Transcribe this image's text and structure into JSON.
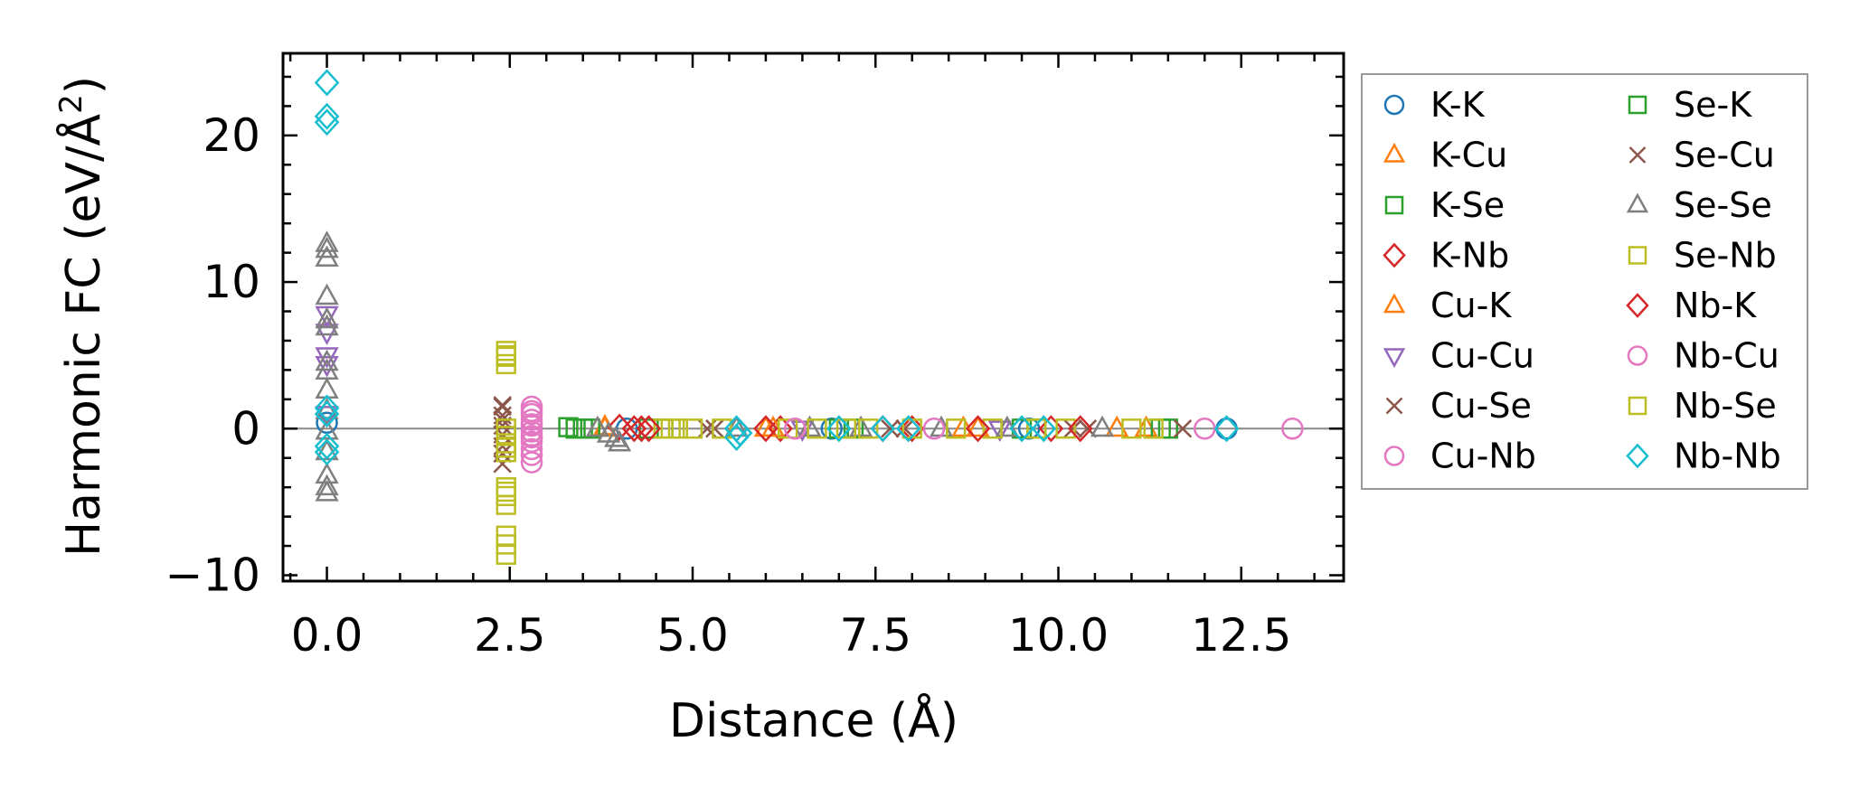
{
  "chart_data": {
    "type": "scatter",
    "title": "",
    "xlabel": "Distance (Å)",
    "ylabel": "Harmonic FC (eV/Å²)",
    "ylabel_main": "Harmonic FC (eV/Å",
    "ylabel_sup": "2",
    "ylabel_tail": ")",
    "xlim": [
      -0.6,
      13.9
    ],
    "ylim": [
      -10.4,
      25.6
    ],
    "xticks": [
      0.0,
      2.5,
      5.0,
      7.5,
      10.0,
      12.5
    ],
    "xtick_labels": [
      "0.0",
      "2.5",
      "5.0",
      "7.5",
      "10.0",
      "12.5"
    ],
    "yticks": [
      -10,
      0,
      10,
      20
    ],
    "ytick_labels": [
      "−10",
      "0",
      "10",
      "20"
    ],
    "zero_line": true,
    "legend_position": "outside-right",
    "series": [
      {
        "name": "K-K",
        "marker": "circle",
        "color": "#1f77b4",
        "x": [
          0.0,
          4.1,
          6.9,
          9.6,
          12.3
        ],
        "y": [
          0.4,
          0.0,
          0.0,
          0.0,
          0.0
        ]
      },
      {
        "name": "K-Cu",
        "marker": "triangle-up",
        "color": "#ff7f0e",
        "x": [
          3.8,
          6.0,
          8.7,
          11.2
        ],
        "y": [
          0.1,
          0.0,
          0.0,
          0.0
        ]
      },
      {
        "name": "K-Se",
        "marker": "square",
        "color": "#2ca02c",
        "x": [
          3.3,
          3.5,
          4.4,
          7.0,
          9.5,
          11.5
        ],
        "y": [
          0.1,
          0.0,
          0.0,
          0.0,
          0.0,
          0.0
        ]
      },
      {
        "name": "K-Nb",
        "marker": "diamond",
        "color": "#d62728",
        "x": [
          4.0,
          4.3,
          6.2,
          8.0,
          9.9
        ],
        "y": [
          0.1,
          0.0,
          0.0,
          0.0,
          0.0
        ]
      },
      {
        "name": "Cu-K",
        "marker": "triangle-up",
        "color": "#ff7f0e",
        "x": [
          3.8,
          6.1,
          8.9,
          10.8
        ],
        "y": [
          0.0,
          0.0,
          0.0,
          0.0
        ]
      },
      {
        "name": "Cu-Cu",
        "marker": "triangle-down",
        "color": "#9467bd",
        "x": [
          0.0,
          0.0,
          0.0,
          0.0,
          0.0,
          6.5,
          9.2
        ],
        "y": [
          7.8,
          6.6,
          5.0,
          4.4,
          1.0,
          0.0,
          0.0
        ]
      },
      {
        "name": "Cu-Se",
        "marker": "x",
        "color": "#8c564b",
        "x": [
          2.4,
          2.4,
          2.4,
          2.4,
          2.4,
          5.2,
          7.7,
          10.2
        ],
        "y": [
          1.5,
          0.9,
          0.2,
          -1.2,
          -2.4,
          0.0,
          0.0,
          0.0
        ]
      },
      {
        "name": "Cu-Nb",
        "marker": "circle",
        "color": "#e377c2",
        "x": [
          2.8,
          2.8,
          2.8,
          2.8,
          2.8,
          2.8,
          2.8,
          2.8,
          2.8
        ],
        "y": [
          1.5,
          1.0,
          0.6,
          0.2,
          -0.2,
          -0.5,
          -0.9,
          -1.4,
          -2.3
        ]
      },
      {
        "name": "Se-K",
        "marker": "square",
        "color": "#2ca02c",
        "x": [
          3.4,
          3.6,
          4.6,
          7.2,
          9.7,
          11.4
        ],
        "y": [
          0.0,
          0.0,
          0.0,
          0.0,
          0.0,
          0.0
        ]
      },
      {
        "name": "Se-Cu",
        "marker": "x",
        "color": "#8c564b",
        "x": [
          2.4,
          2.4,
          2.4,
          2.4,
          5.3,
          7.9,
          10.4,
          11.7
        ],
        "y": [
          1.6,
          0.6,
          -0.4,
          -1.7,
          0.0,
          0.0,
          0.0,
          0.0
        ]
      },
      {
        "name": "Se-Se",
        "marker": "triangle-up",
        "color": "#7f7f7f",
        "x": [
          0.0,
          0.0,
          0.0,
          0.0,
          0.0,
          0.0,
          0.0,
          0.0,
          0.0,
          0.0,
          0.0,
          0.0,
          0.0,
          0.0,
          0.0,
          3.7,
          3.85,
          3.95,
          4.0,
          5.6,
          6.6,
          7.3,
          8.4,
          9.3,
          10.6
        ],
        "y": [
          12.6,
          12.2,
          11.6,
          9.0,
          7.4,
          6.9,
          4.5,
          3.9,
          2.6,
          1.2,
          -0.2,
          -1.6,
          -3.2,
          -4.0,
          -4.4,
          0.0,
          -0.4,
          -0.7,
          -1.0,
          0.0,
          0.0,
          0.0,
          0.0,
          0.0,
          0.0
        ]
      },
      {
        "name": "Se-Nb",
        "marker": "square",
        "color": "#bcbd22",
        "x": [
          2.45,
          2.45,
          2.45,
          2.45,
          2.45,
          2.45,
          2.45,
          2.45,
          2.45,
          2.45,
          2.45,
          2.45,
          4.6,
          4.8,
          5.4,
          6.3,
          7.1,
          8.0,
          9.1,
          10.1,
          11.0
        ],
        "y": [
          5.3,
          4.9,
          4.4,
          -0.5,
          -1.0,
          -1.6,
          -4.0,
          -4.6,
          -5.2,
          -7.3,
          -7.9,
          -8.6,
          0.0,
          0.0,
          0.0,
          0.0,
          0.0,
          0.0,
          0.0,
          0.0,
          0.0
        ]
      },
      {
        "name": "Nb-K",
        "marker": "diamond",
        "color": "#d62728",
        "x": [
          4.2,
          4.4,
          6.0,
          7.6,
          8.9,
          10.3
        ],
        "y": [
          0.0,
          0.0,
          0.0,
          0.0,
          0.0,
          0.0
        ]
      },
      {
        "name": "Nb-Cu",
        "marker": "circle",
        "color": "#e377c2",
        "x": [
          2.8,
          2.8,
          2.8,
          2.8,
          6.4,
          8.3,
          12.0,
          13.2
        ],
        "y": [
          1.2,
          0.3,
          -0.6,
          -1.8,
          0.0,
          0.0,
          0.0,
          0.0
        ]
      },
      {
        "name": "Nb-Se",
        "marker": "square",
        "color": "#bcbd22",
        "x": [
          2.45,
          2.45,
          2.45,
          2.45,
          4.7,
          5.0,
          6.7,
          7.4,
          8.6,
          9.7,
          11.3
        ],
        "y": [
          5.0,
          0.0,
          -1.3,
          -4.3,
          0.0,
          0.0,
          0.0,
          0.0,
          0.0,
          0.0,
          0.0
        ]
      },
      {
        "name": "Nb-Nb",
        "marker": "diamond",
        "color": "#17becf",
        "x": [
          0.0,
          0.0,
          0.0,
          0.0,
          0.0,
          0.0,
          0.0,
          5.6,
          5.6,
          5.65,
          7.0,
          7.6,
          7.95,
          9.5,
          9.8,
          12.3
        ],
        "y": [
          23.6,
          21.3,
          20.9,
          1.4,
          1.0,
          -1.2,
          -1.6,
          0.0,
          -0.6,
          -0.3,
          0.0,
          0.0,
          0.0,
          0.0,
          0.0,
          0.0
        ]
      }
    ]
  }
}
